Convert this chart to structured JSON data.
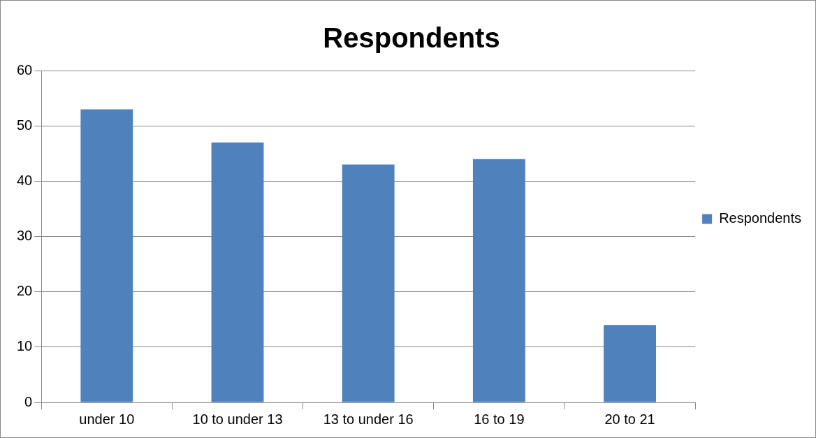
{
  "chart_data": {
    "type": "bar",
    "title": "Respondents",
    "categories": [
      "under 10",
      "10 to under 13",
      "13 to under 16",
      "16 to 19",
      "20 to 21"
    ],
    "series": [
      {
        "name": "Respondents",
        "color": "#4f81bd",
        "values": [
          53,
          47,
          43,
          44,
          14
        ]
      }
    ],
    "ylim": [
      0,
      60
    ],
    "yticks": [
      0,
      10,
      20,
      30,
      40,
      50,
      60
    ],
    "grid": "y",
    "legend": "right"
  }
}
